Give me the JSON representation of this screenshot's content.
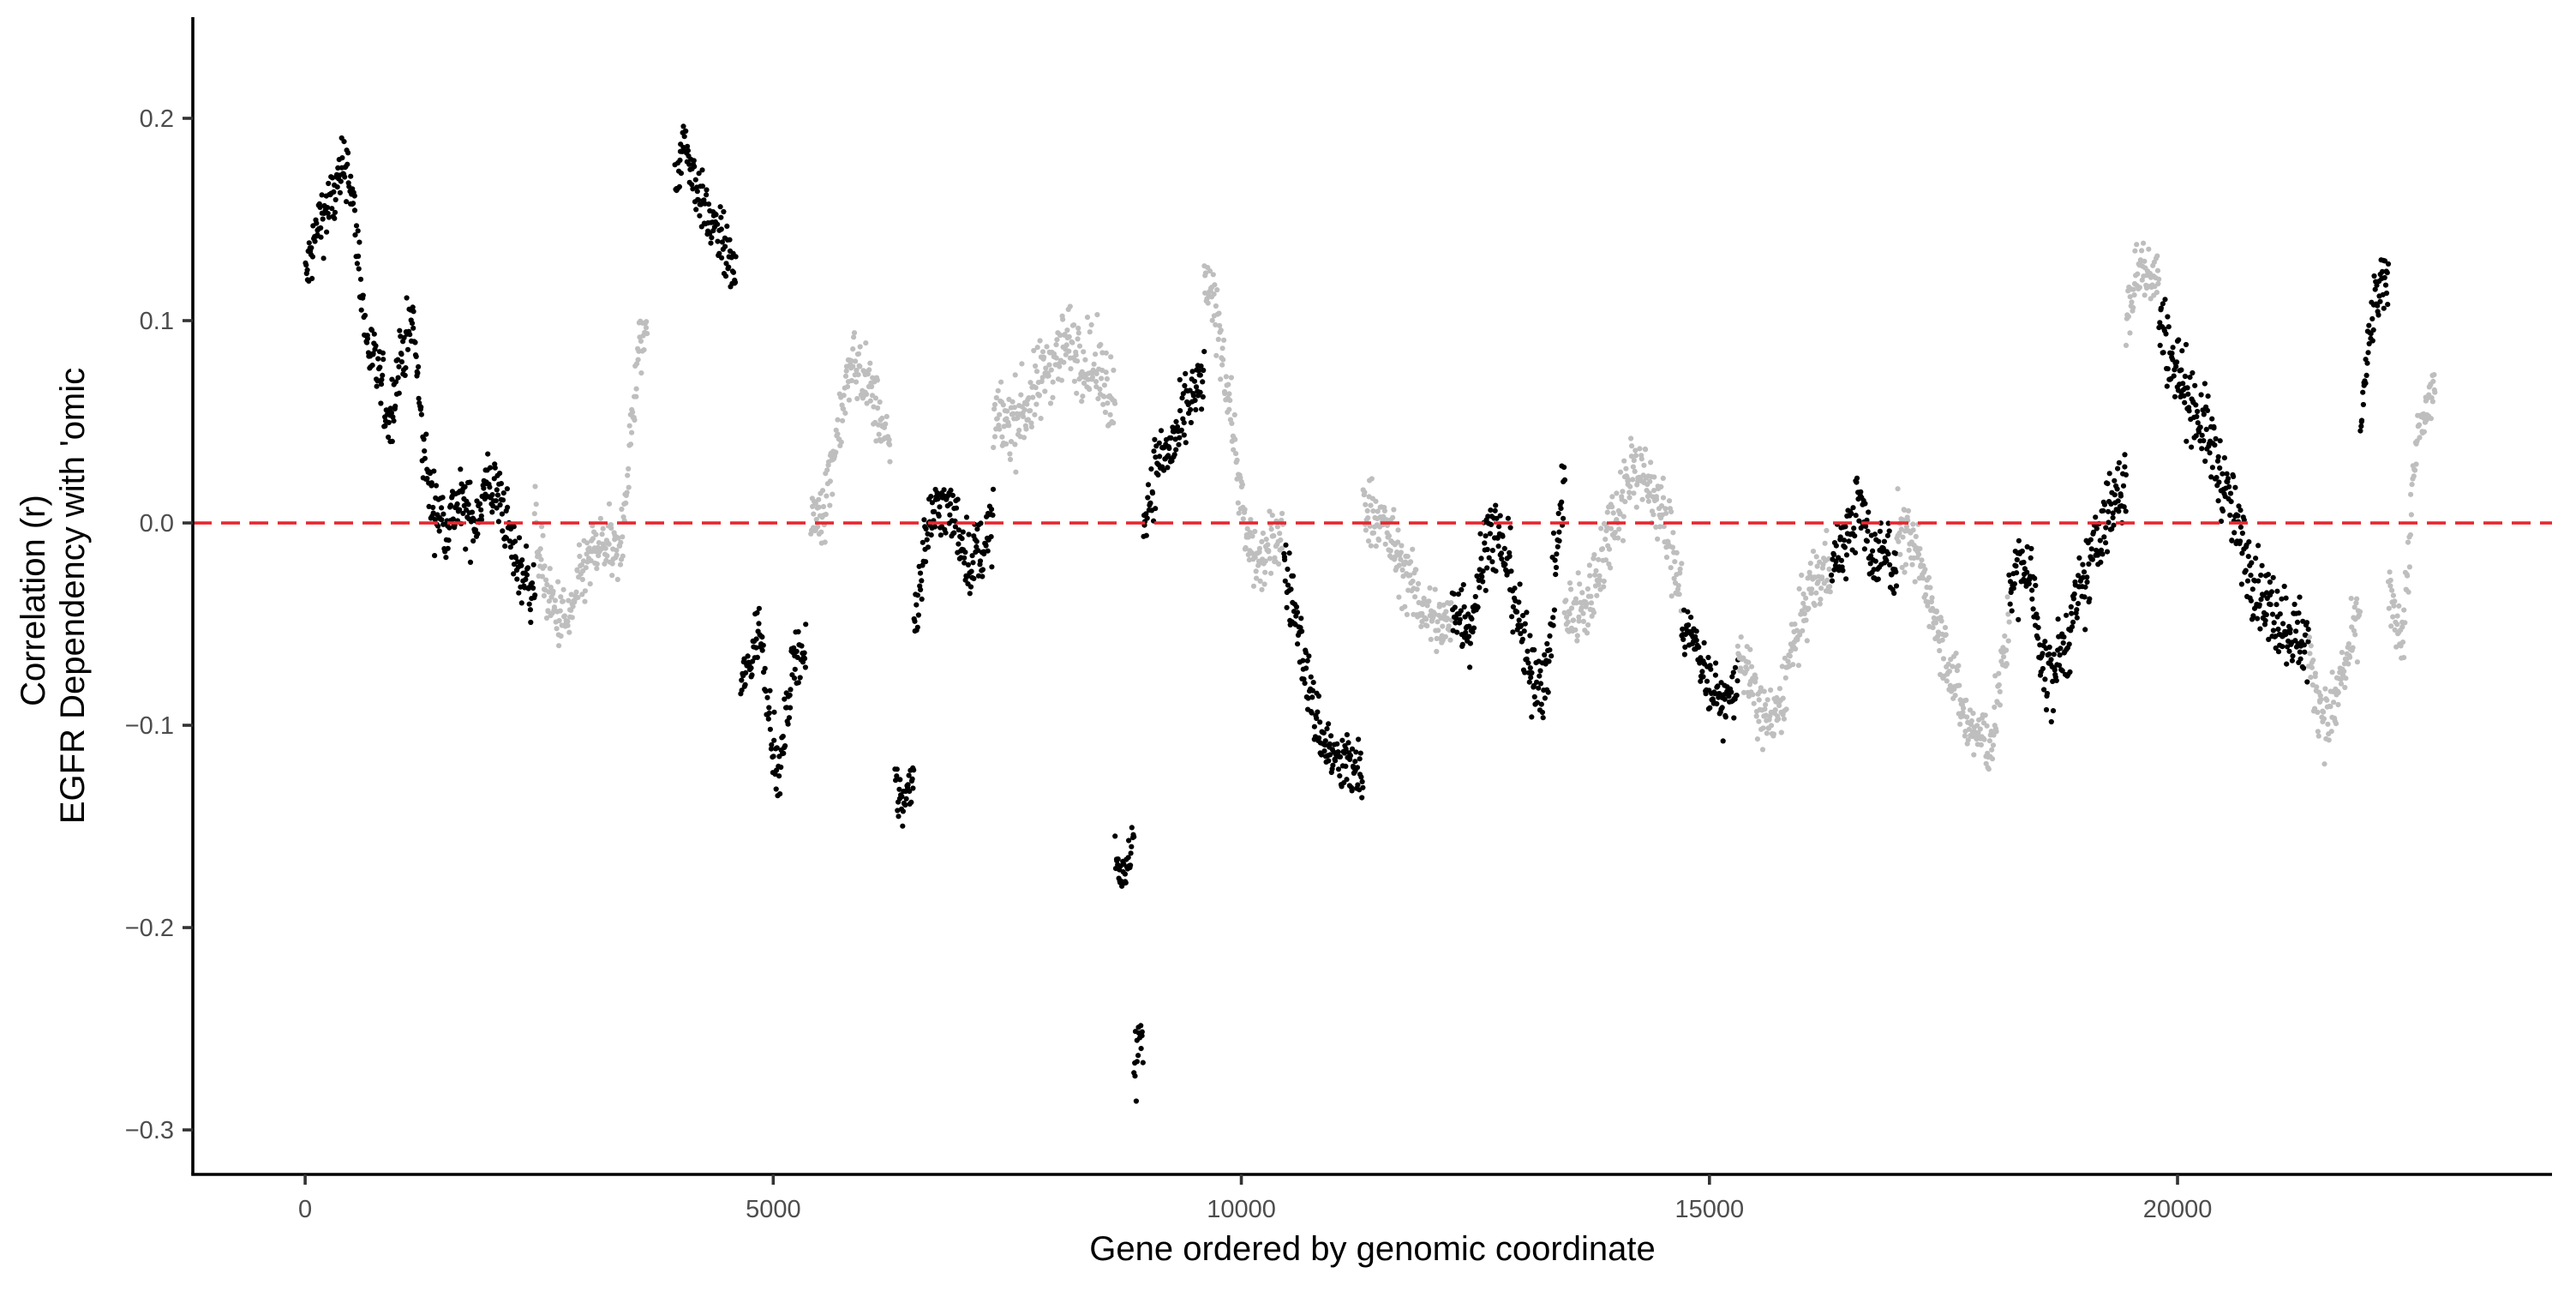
{
  "chart_data": {
    "type": "scatter",
    "title": "",
    "xlabel": "Gene ordered by genomic coordinate",
    "ylabel_lines": [
      "Correlation (r)",
      "EGFR Dependency with 'omic"
    ],
    "xlim": [
      -1200,
      24000
    ],
    "ylim": [
      -0.322,
      0.25
    ],
    "x_ticks": [
      0,
      5000,
      10000,
      15000,
      20000
    ],
    "x_tick_labels": [
      "0",
      "5000",
      "10000",
      "15000",
      "20000"
    ],
    "y_ticks": [
      -0.3,
      -0.2,
      -0.1,
      0.0,
      0.1,
      0.2
    ],
    "y_tick_labels": [
      "−0.3",
      "−0.2",
      "−0.1",
      "0.0",
      "0.1",
      "0.2"
    ],
    "reference_line": {
      "y": 0.0,
      "style": "dashed",
      "color": "#e8282f"
    },
    "grid": false,
    "legend": "none",
    "point_colors": {
      "odd_chromosome": "#000000",
      "even_chromosome": "#bebebe"
    },
    "series": [
      {
        "color": "#000000",
        "x_range": [
          0,
          2450
        ],
        "trend": [
          [
            0,
            0.12
          ],
          [
            150,
            0.15
          ],
          [
            300,
            0.16
          ],
          [
            450,
            0.18
          ],
          [
            550,
            0.14
          ],
          [
            650,
            0.09
          ],
          [
            800,
            0.07
          ],
          [
            900,
            0.05
          ],
          [
            1000,
            0.08
          ],
          [
            1150,
            0.1
          ],
          [
            1250,
            0.04
          ],
          [
            1350,
            0.01
          ],
          [
            1500,
            0.0
          ],
          [
            1650,
            0.01
          ],
          [
            1800,
            0.0
          ],
          [
            1950,
            0.02
          ],
          [
            2100,
            0.01
          ],
          [
            2250,
            -0.02
          ],
          [
            2400,
            -0.03
          ]
        ],
        "spread": 0.012
      },
      {
        "color": "#bebebe",
        "x_range": [
          2450,
          3650
        ],
        "trend": [
          [
            2450,
            0.0
          ],
          [
            2600,
            -0.04
          ],
          [
            2800,
            -0.05
          ],
          [
            3000,
            -0.02
          ],
          [
            3200,
            -0.01
          ],
          [
            3350,
            -0.02
          ],
          [
            3450,
            0.03
          ],
          [
            3550,
            0.08
          ],
          [
            3650,
            0.1
          ]
        ],
        "spread": 0.012
      },
      {
        "color": "#000000",
        "x_range": [
          3950,
          4600
        ],
        "trend": [
          [
            3950,
            0.17
          ],
          [
            4050,
            0.19
          ],
          [
            4150,
            0.17
          ],
          [
            4300,
            0.15
          ],
          [
            4450,
            0.14
          ],
          [
            4600,
            0.12
          ]
        ],
        "spread": 0.01
      },
      {
        "color": "#000000",
        "x_range": [
          4650,
          5350
        ],
        "trend": [
          [
            4650,
            -0.08
          ],
          [
            4750,
            -0.07
          ],
          [
            4850,
            -0.05
          ],
          [
            4950,
            -0.09
          ],
          [
            5050,
            -0.13
          ],
          [
            5150,
            -0.09
          ],
          [
            5250,
            -0.06
          ],
          [
            5350,
            -0.07
          ]
        ],
        "spread": 0.01
      },
      {
        "color": "#bebebe",
        "x_range": [
          5400,
          6250
        ],
        "trend": [
          [
            5400,
            0.0
          ],
          [
            5550,
            0.01
          ],
          [
            5700,
            0.05
          ],
          [
            5850,
            0.08
          ],
          [
            6000,
            0.07
          ],
          [
            6150,
            0.05
          ],
          [
            6250,
            0.03
          ]
        ],
        "spread": 0.012
      },
      {
        "color": "#000000",
        "x_range": [
          6300,
          6500
        ],
        "trend": [
          [
            6300,
            -0.13
          ],
          [
            6400,
            -0.14
          ],
          [
            6500,
            -0.12
          ]
        ],
        "spread": 0.01
      },
      {
        "color": "#000000",
        "x_range": [
          6500,
          7350
        ],
        "trend": [
          [
            6500,
            -0.05
          ],
          [
            6650,
            0.0
          ],
          [
            6800,
            0.01
          ],
          [
            6950,
            0.0
          ],
          [
            7100,
            -0.02
          ],
          [
            7250,
            -0.01
          ],
          [
            7350,
            0.0
          ]
        ],
        "spread": 0.012
      },
      {
        "color": "#bebebe",
        "x_range": [
          7350,
          8650
        ],
        "trend": [
          [
            7350,
            0.05
          ],
          [
            7550,
            0.05
          ],
          [
            7750,
            0.06
          ],
          [
            7950,
            0.08
          ],
          [
            8150,
            0.09
          ],
          [
            8350,
            0.08
          ],
          [
            8550,
            0.07
          ],
          [
            8650,
            0.06
          ]
        ],
        "spread": 0.014
      },
      {
        "color": "#000000",
        "x_range": [
          8650,
          8850
        ],
        "trend": [
          [
            8650,
            -0.16
          ],
          [
            8750,
            -0.18
          ],
          [
            8850,
            -0.15
          ]
        ],
        "spread": 0.008
      },
      {
        "color": "#000000",
        "x_range": [
          8850,
          8950
        ],
        "trend": [
          [
            8850,
            -0.27
          ],
          [
            8950,
            -0.25
          ]
        ],
        "spread": 0.015
      },
      {
        "color": "#000000",
        "x_range": [
          8950,
          9600
        ],
        "trend": [
          [
            8950,
            0.0
          ],
          [
            9100,
            0.03
          ],
          [
            9300,
            0.04
          ],
          [
            9450,
            0.06
          ],
          [
            9600,
            0.07
          ]
        ],
        "spread": 0.012
      },
      {
        "color": "#bebebe",
        "x_range": [
          9600,
          10450
        ],
        "trend": [
          [
            9600,
            0.12
          ],
          [
            9750,
            0.1
          ],
          [
            9900,
            0.05
          ],
          [
            10050,
            -0.01
          ],
          [
            10200,
            -0.02
          ],
          [
            10350,
            -0.01
          ],
          [
            10450,
            0.0
          ]
        ],
        "spread": 0.012
      },
      {
        "color": "#000000",
        "x_range": [
          10450,
          11300
        ],
        "trend": [
          [
            10450,
            -0.02
          ],
          [
            10600,
            -0.05
          ],
          [
            10750,
            -0.09
          ],
          [
            10900,
            -0.11
          ],
          [
            11050,
            -0.12
          ],
          [
            11200,
            -0.12
          ],
          [
            11300,
            -0.13
          ]
        ],
        "spread": 0.012
      },
      {
        "color": "#bebebe",
        "x_range": [
          11300,
          12250
        ],
        "trend": [
          [
            11300,
            0.01
          ],
          [
            11500,
            0.0
          ],
          [
            11700,
            -0.02
          ],
          [
            11900,
            -0.04
          ],
          [
            12100,
            -0.05
          ],
          [
            12250,
            -0.05
          ]
        ],
        "spread": 0.012
      },
      {
        "color": "#000000",
        "x_range": [
          12250,
          13450
        ],
        "trend": [
          [
            12250,
            -0.04
          ],
          [
            12450,
            -0.05
          ],
          [
            12650,
            0.0
          ],
          [
            12850,
            -0.02
          ],
          [
            13050,
            -0.07
          ],
          [
            13250,
            -0.08
          ],
          [
            13450,
            0.03
          ]
        ],
        "spread": 0.014
      },
      {
        "color": "#bebebe",
        "x_range": [
          13450,
          14700
        ],
        "trend": [
          [
            13450,
            -0.05
          ],
          [
            13700,
            -0.04
          ],
          [
            13950,
            0.0
          ],
          [
            14200,
            0.03
          ],
          [
            14450,
            0.01
          ],
          [
            14700,
            -0.03
          ]
        ],
        "spread": 0.014
      },
      {
        "color": "#000000",
        "x_range": [
          14700,
          15300
        ],
        "trend": [
          [
            14700,
            -0.05
          ],
          [
            14850,
            -0.06
          ],
          [
            15000,
            -0.08
          ],
          [
            15150,
            -0.09
          ],
          [
            15300,
            -0.08
          ]
        ],
        "spread": 0.01
      },
      {
        "color": "#bebebe",
        "x_range": [
          15300,
          16300
        ],
        "trend": [
          [
            15300,
            -0.06
          ],
          [
            15500,
            -0.09
          ],
          [
            15700,
            -0.1
          ],
          [
            15900,
            -0.06
          ],
          [
            16100,
            -0.03
          ],
          [
            16300,
            -0.02
          ]
        ],
        "spread": 0.012
      },
      {
        "color": "#000000",
        "x_range": [
          16300,
          17000
        ],
        "trend": [
          [
            16300,
            -0.02
          ],
          [
            16450,
            -0.01
          ],
          [
            16600,
            0.01
          ],
          [
            16750,
            -0.02
          ],
          [
            16900,
            -0.01
          ],
          [
            17000,
            -0.03
          ]
        ],
        "spread": 0.012
      },
      {
        "color": "#bebebe",
        "x_range": [
          17000,
          18200
        ],
        "trend": [
          [
            17000,
            0.0
          ],
          [
            17250,
            -0.02
          ],
          [
            17500,
            -0.06
          ],
          [
            17750,
            -0.1
          ],
          [
            18000,
            -0.11
          ],
          [
            18200,
            -0.05
          ]
        ],
        "spread": 0.012
      },
      {
        "color": "#000000",
        "x_range": [
          18200,
          19450
        ],
        "trend": [
          [
            18200,
            -0.03
          ],
          [
            18400,
            -0.02
          ],
          [
            18600,
            -0.08
          ],
          [
            18800,
            -0.06
          ],
          [
            19000,
            -0.03
          ],
          [
            19200,
            0.0
          ],
          [
            19450,
            0.02
          ]
        ],
        "spread": 0.014
      },
      {
        "color": "#bebebe",
        "x_range": [
          19450,
          19800
        ],
        "trend": [
          [
            19450,
            0.1
          ],
          [
            19600,
            0.13
          ],
          [
            19800,
            0.12
          ]
        ],
        "spread": 0.012
      },
      {
        "color": "#000000",
        "x_range": [
          19800,
          21400
        ],
        "trend": [
          [
            19800,
            0.1
          ],
          [
            19950,
            0.08
          ],
          [
            20150,
            0.06
          ],
          [
            20350,
            0.04
          ],
          [
            20550,
            0.01
          ],
          [
            20750,
            -0.02
          ],
          [
            20950,
            -0.04
          ],
          [
            21150,
            -0.05
          ],
          [
            21400,
            -0.06
          ]
        ],
        "spread": 0.014
      },
      {
        "color": "#bebebe",
        "x_range": [
          21400,
          21950
        ],
        "trend": [
          [
            21400,
            -0.07
          ],
          [
            21600,
            -0.1
          ],
          [
            21800,
            -0.07
          ],
          [
            21950,
            -0.04
          ]
        ],
        "spread": 0.012
      },
      {
        "color": "#000000",
        "x_range": [
          21950,
          22250
        ],
        "trend": [
          [
            21950,
            0.05
          ],
          [
            22100,
            0.11
          ],
          [
            22250,
            0.12
          ]
        ],
        "spread": 0.01
      },
      {
        "color": "#bebebe",
        "x_range": [
          22250,
          22750
        ],
        "trend": [
          [
            22250,
            -0.03
          ],
          [
            22400,
            -0.06
          ],
          [
            22550,
            0.04
          ],
          [
            22750,
            0.07
          ]
        ],
        "spread": 0.012
      }
    ]
  }
}
